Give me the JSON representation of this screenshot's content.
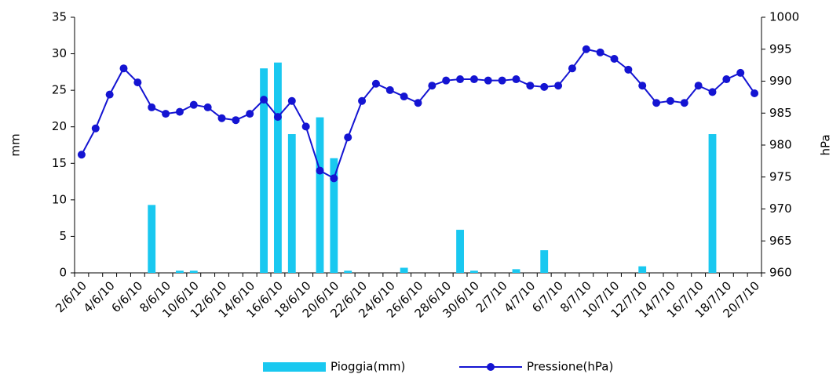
{
  "chart_data": {
    "type": "bar-line",
    "categories": [
      "2/6/10",
      null,
      "4/6/10",
      null,
      "6/6/10",
      null,
      "8/6/10",
      null,
      "10/6/10",
      null,
      "12/6/10",
      null,
      "14/6/10",
      null,
      "16/6/10",
      null,
      "18/6/10",
      null,
      "20/6/10",
      null,
      "22/6/10",
      null,
      "24/6/10",
      null,
      "26/6/10",
      null,
      "28/6/10",
      null,
      "30/6/10",
      null,
      "2/7/10",
      null,
      "4/7/10",
      null,
      "6/7/10",
      null,
      "8/7/10",
      null,
      "10/7/10",
      null,
      "12/7/10",
      null,
      "14/7/10",
      null,
      "16/7/10",
      null,
      "18/7/10",
      null,
      "20/7/10"
    ],
    "series": [
      {
        "name": "Pioggia(mm)",
        "type": "bar",
        "color": "#19c8f0",
        "axis": "y",
        "values": [
          0,
          0,
          0,
          0,
          0,
          9.3,
          0,
          0.3,
          0.3,
          0,
          0,
          0,
          0,
          28,
          28.8,
          19,
          0,
          21.3,
          15.7,
          0.3,
          0,
          0,
          0,
          0.7,
          0,
          0,
          0,
          5.9,
          0.3,
          0,
          0,
          0.5,
          0,
          3.1,
          0,
          0,
          0,
          0,
          0,
          0,
          0.9,
          0,
          0,
          0,
          0,
          19,
          0,
          0,
          0
        ]
      },
      {
        "name": "Pressione(hPa)",
        "type": "line",
        "color": "#1414d2",
        "axis": "y2",
        "values": [
          978.5,
          982.6,
          987.9,
          992.0,
          989.8,
          985.9,
          984.9,
          985.2,
          986.3,
          985.9,
          984.2,
          983.9,
          984.9,
          987.1,
          984.4,
          986.9,
          982.9,
          976.0,
          974.8,
          981.2,
          986.9,
          989.6,
          988.6,
          987.6,
          986.6,
          989.3,
          990.1,
          990.3,
          990.3,
          990.1,
          990.1,
          990.3,
          989.3,
          989.1,
          989.3,
          992.0,
          995.0,
          994.5,
          993.5,
          991.8,
          989.3,
          986.6,
          986.9,
          986.6,
          989.3,
          988.3,
          990.3,
          991.3,
          988.1
        ]
      }
    ],
    "ylabel": "mm",
    "y2label": "hPa",
    "ylim": [
      0,
      35
    ],
    "yticks": [
      0,
      5,
      10,
      15,
      20,
      25,
      30,
      35
    ],
    "y2lim": [
      960,
      1000
    ],
    "y2ticks": [
      960,
      965,
      970,
      975,
      980,
      985,
      990,
      995,
      1000
    ]
  }
}
